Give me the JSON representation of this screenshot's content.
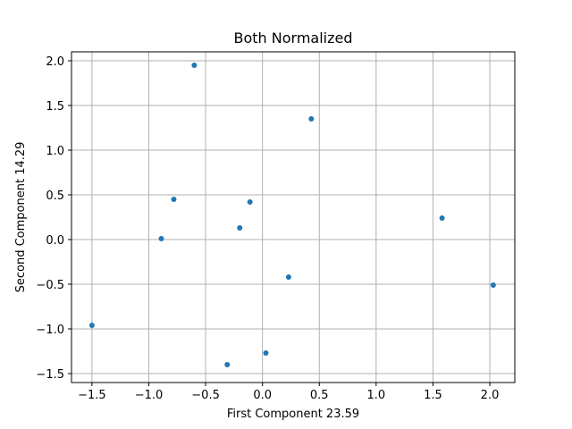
{
  "chart_data": {
    "type": "scatter",
    "title": "Both Normalized",
    "xlabel": "First Component 23.59",
    "ylabel": "Second Component 14.29",
    "xlim": [
      -1.68,
      2.22
    ],
    "ylim": [
      -1.6,
      2.1
    ],
    "xticks": [
      -1.5,
      -1.0,
      -0.5,
      0.0,
      0.5,
      1.0,
      1.5,
      2.0
    ],
    "xtick_labels": [
      "−1.5",
      "−1.0",
      "−0.5",
      "0.0",
      "0.5",
      "1.0",
      "1.5",
      "2.0"
    ],
    "yticks": [
      -1.5,
      -1.0,
      -0.5,
      0.0,
      0.5,
      1.0,
      1.5,
      2.0
    ],
    "ytick_labels": [
      "−1.5",
      "−1.0",
      "−0.5",
      "0.0",
      "0.5",
      "1.0",
      "1.5",
      "2.0"
    ],
    "grid": true,
    "color": "#1f77b4",
    "series": [
      {
        "points": [
          {
            "x": -0.6,
            "y": 1.95
          },
          {
            "x": 0.43,
            "y": 1.35
          },
          {
            "x": -0.78,
            "y": 0.45
          },
          {
            "x": -0.11,
            "y": 0.42
          },
          {
            "x": 1.58,
            "y": 0.24
          },
          {
            "x": -0.2,
            "y": 0.13
          },
          {
            "x": -0.89,
            "y": 0.01
          },
          {
            "x": 0.23,
            "y": -0.42
          },
          {
            "x": 2.03,
            "y": -0.51
          },
          {
            "x": -1.5,
            "y": -0.96
          },
          {
            "x": 0.03,
            "y": -1.27
          },
          {
            "x": -0.31,
            "y": -1.4
          }
        ]
      }
    ]
  }
}
